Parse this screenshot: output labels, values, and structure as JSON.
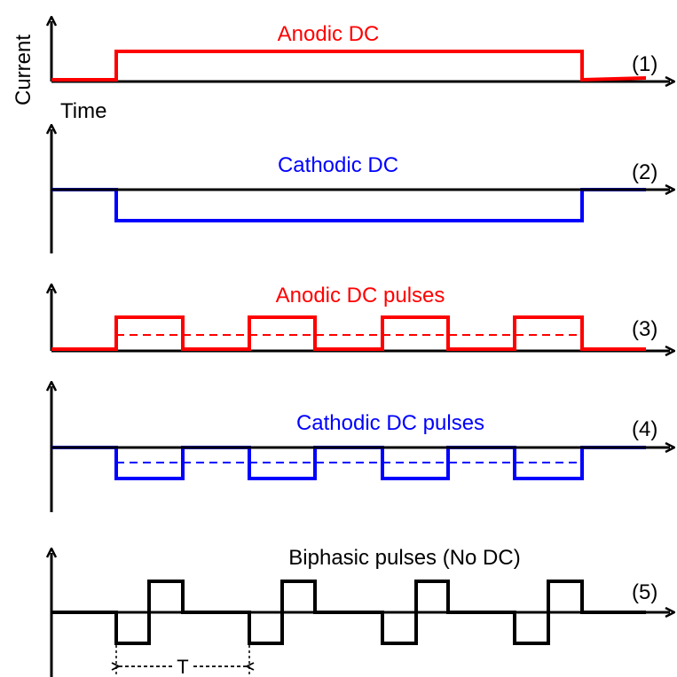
{
  "axes": {
    "y_label": "Current",
    "x_label": "Time"
  },
  "colors": {
    "anodic": "#ff0000",
    "cathodic": "#0000ff",
    "biphasic": "#000000"
  },
  "panels": [
    {
      "id": "anodic-dc",
      "title": "Anodic DC",
      "number": "(1)",
      "color": "#ff0000"
    },
    {
      "id": "cathodic-dc",
      "title": "Cathodic DC",
      "number": "(2)",
      "color": "#0000ff"
    },
    {
      "id": "anodic-dc-pulses",
      "title": "Anodic DC pulses",
      "number": "(3)",
      "color": "#ff0000"
    },
    {
      "id": "cathodic-dc-pulses",
      "title": "Cathodic DC pulses",
      "number": "(4)",
      "color": "#0000ff"
    },
    {
      "id": "biphasic-pulses",
      "title": "Biphasic pulses (No DC)",
      "number": "(5)",
      "color": "#000000"
    }
  ],
  "period_label": "T"
}
